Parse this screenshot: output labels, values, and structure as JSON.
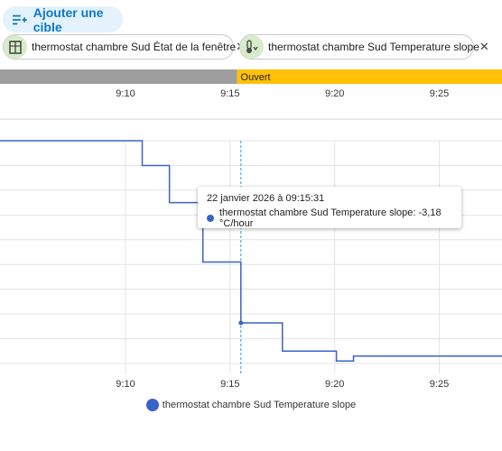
{
  "toolbar": {
    "add_target_label": "Ajouter une cible"
  },
  "chips": [
    {
      "label": "thermostat chambre Sud État de la fenêtre",
      "icon": "window-icon"
    },
    {
      "label": "thermostat chambre Sud Temperature slope",
      "icon": "thermometer-icon"
    }
  ],
  "timeline": {
    "segments": [
      {
        "from": "09:04:00",
        "to": "09:15:20",
        "state": "",
        "color": "#9e9e9e"
      },
      {
        "from": "09:15:20",
        "to": "09:28:00",
        "state": "Ouvert",
        "color": "#ffc107"
      }
    ]
  },
  "chart_data": {
    "type": "line",
    "step": true,
    "x_axis": {
      "min": "09:04:00",
      "max": "09:28:00",
      "ticks": [
        "9:10",
        "9:15",
        "9:20",
        "9:25"
      ]
    },
    "y_axis": {
      "labels_visible": false
    },
    "grid": true,
    "legend": "bottom-center",
    "series": [
      {
        "name": "thermostat chambre Sud Temperature slope",
        "color": "#3a63c9",
        "unit": "°C/hour",
        "points": [
          {
            "x": "09:04:00",
            "y": 0.5
          },
          {
            "x": "09:10:48",
            "y": 0.0
          },
          {
            "x": "09:12:06",
            "y": -0.75
          },
          {
            "x": "09:13:42",
            "y": -1.95
          },
          {
            "x": "09:15:31",
            "y": -3.18
          },
          {
            "x": "09:17:30",
            "y": -3.75
          },
          {
            "x": "09:20:05",
            "y": -3.95
          },
          {
            "x": "09:20:54",
            "y": -3.85
          },
          {
            "x": "09:28:00",
            "y": -3.85
          }
        ]
      }
    ],
    "cursor_x": "09:15:31",
    "tooltip": {
      "date": "22 janvier 2026 à 09:15:31",
      "text": "thermostat chambre Sud Temperature slope: -3,18 °C/hour"
    },
    "legend_label": "thermostat chambre Sud Temperature slope"
  }
}
